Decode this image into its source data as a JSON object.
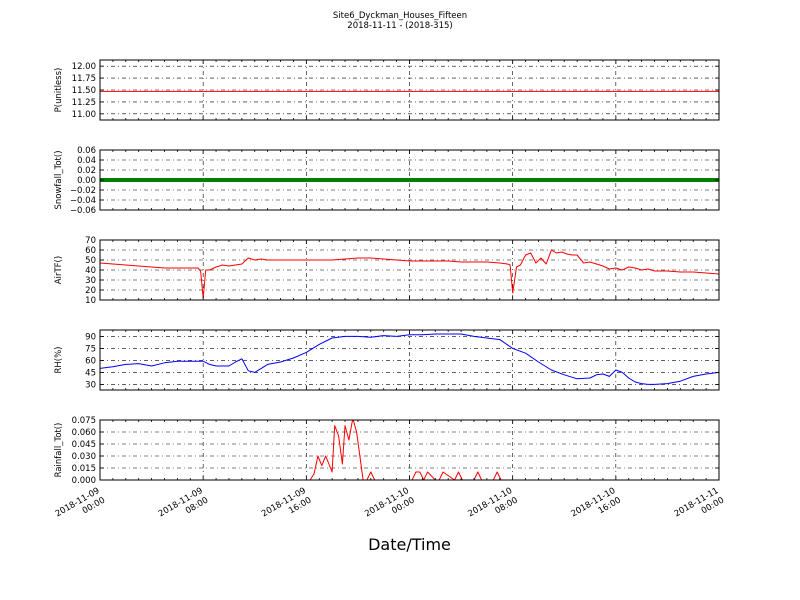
{
  "figure": {
    "title": "Site6_Dyckman_Houses_Fifteen",
    "subtitle": "2018-11-11 - (2018-315)",
    "xlabel": "Date/Time",
    "x_ticks": [
      {
        "value": 0,
        "date": "2018-11-09",
        "time": "00:00"
      },
      {
        "value": 8,
        "date": "2018-11-09",
        "time": "08:00"
      },
      {
        "value": 16,
        "date": "2018-11-09",
        "time": "16:00"
      },
      {
        "value": 24,
        "date": "2018-11-10",
        "time": "00:00"
      },
      {
        "value": 32,
        "date": "2018-11-10",
        "time": "08:00"
      },
      {
        "value": 40,
        "date": "2018-11-10",
        "time": "16:00"
      },
      {
        "value": 48,
        "date": "2018-11-11",
        "time": "00:00"
      }
    ]
  },
  "chart_data": [
    {
      "type": "line",
      "ylabel": "P(unitless)",
      "ylim": [
        10.87,
        12.13
      ],
      "yticks": [
        11.0,
        11.25,
        11.5,
        11.75,
        12.0
      ],
      "ytick_labels": [
        "11.00",
        "11.25",
        "11.50",
        "11.75",
        "12.00"
      ],
      "xlim": [
        0,
        48
      ],
      "grid": true,
      "color": "#ff0000",
      "x": [
        0,
        48
      ],
      "y": [
        11.47,
        11.47
      ]
    },
    {
      "type": "line",
      "ylabel": "Snowfall_Tot()",
      "ylim": [
        -0.06,
        0.06
      ],
      "yticks": [
        -0.06,
        -0.04,
        -0.02,
        0.0,
        0.02,
        0.04,
        0.06
      ],
      "ytick_labels": [
        "−0.06",
        "−0.04",
        "−0.02",
        "0.00",
        "0.02",
        "0.04",
        "0.06"
      ],
      "xlim": [
        0,
        48
      ],
      "grid": true,
      "color": "#007f00",
      "line_width": 4,
      "x": [
        0,
        48
      ],
      "y": [
        0,
        0
      ]
    },
    {
      "type": "line",
      "ylabel": "AirTF()",
      "ylim": [
        10,
        70
      ],
      "yticks": [
        10,
        20,
        30,
        40,
        50,
        60,
        70
      ],
      "ytick_labels": [
        "10",
        "20",
        "30",
        "40",
        "50",
        "60",
        "70"
      ],
      "xlim": [
        0,
        48
      ],
      "grid": true,
      "color": "#ff0000",
      "x": [
        0,
        1,
        2,
        3,
        4,
        5,
        6,
        7,
        7.6,
        7.8,
        8,
        8.2,
        8.5,
        9,
        9.5,
        10,
        10.5,
        11,
        11.5,
        12,
        12.5,
        13,
        14,
        15,
        16,
        17,
        18,
        19,
        20,
        21,
        22,
        23,
        24,
        25,
        26,
        27,
        28,
        29,
        30,
        31,
        31.6,
        31.8,
        32,
        32.3,
        32.6,
        33,
        33.4,
        33.8,
        34.2,
        34.6,
        35,
        35.4,
        35.8,
        36.2,
        36.6,
        37,
        37.5,
        38,
        38.5,
        39,
        39.5,
        40,
        40.5,
        41,
        41.5,
        42,
        42.5,
        43,
        44,
        45,
        46,
        47,
        48
      ],
      "y": [
        47,
        46,
        45,
        44,
        43,
        42,
        42,
        42,
        42,
        39,
        12,
        40,
        40,
        43,
        45,
        44,
        45,
        46,
        52,
        50,
        51,
        50,
        50,
        50,
        50,
        50,
        50,
        51,
        52,
        52,
        51,
        50,
        49,
        49,
        49,
        49,
        48,
        48,
        48,
        47,
        46,
        45,
        17,
        43,
        45,
        55,
        57,
        47,
        52,
        46,
        60,
        57,
        58,
        56,
        55,
        55,
        47,
        48,
        46,
        44,
        41,
        42,
        40,
        43,
        42,
        40,
        41,
        39,
        39,
        38,
        38,
        37,
        36
      ]
    },
    {
      "type": "line",
      "ylabel": "RH(%)",
      "ylim": [
        23,
        98
      ],
      "yticks": [
        30,
        45,
        60,
        75,
        90
      ],
      "ytick_labels": [
        "30",
        "45",
        "60",
        "75",
        "90"
      ],
      "xlim": [
        0,
        48
      ],
      "grid": true,
      "color": "#0000ff",
      "x": [
        0,
        1,
        2,
        3,
        4,
        5,
        6,
        7,
        8,
        8.5,
        9,
        10,
        10.5,
        11,
        11.5,
        12,
        12.5,
        13,
        14,
        15,
        16,
        17,
        18,
        19,
        20,
        21,
        22,
        23,
        24,
        25,
        26,
        27,
        28,
        29,
        30,
        31,
        32,
        32.5,
        33,
        34,
        35,
        36,
        37,
        38,
        38.5,
        39,
        39.5,
        40,
        40.5,
        41,
        41.5,
        42,
        42.5,
        43,
        44,
        45,
        46,
        47,
        48
      ],
      "y": [
        50,
        52,
        55,
        56,
        53,
        57,
        59,
        59,
        59,
        55,
        53,
        53,
        58,
        62,
        47,
        45,
        50,
        55,
        58,
        63,
        70,
        80,
        88,
        90,
        90,
        89,
        91,
        90,
        92,
        92,
        93,
        93,
        93,
        90,
        88,
        86,
        75,
        72,
        69,
        58,
        48,
        42,
        37,
        38,
        42,
        43,
        40,
        48,
        45,
        38,
        33,
        31,
        30,
        30,
        31,
        34,
        40,
        43,
        45
      ]
    },
    {
      "type": "line",
      "ylabel": "Rainfall_Tot()",
      "ylim": [
        0,
        0.075
      ],
      "yticks": [
        0.0,
        0.015,
        0.03,
        0.045,
        0.06,
        0.075
      ],
      "ytick_labels": [
        "0.000",
        "0.015",
        "0.030",
        "0.045",
        "0.060",
        "0.075"
      ],
      "xlim": [
        0,
        48
      ],
      "grid": true,
      "color": "#ff0000",
      "x": [
        0,
        16,
        16.3,
        16.6,
        16.9,
        17.2,
        17.5,
        18,
        18.2,
        18.5,
        18.8,
        19,
        19.3,
        19.6,
        19.9,
        20.4,
        20.7,
        21,
        21.3,
        21.6,
        22,
        24,
        24.2,
        24.5,
        24.8,
        25.1,
        25.4,
        26,
        26.3,
        26.6,
        27.5,
        27.8,
        28.1,
        29,
        29.3,
        29.6,
        30.5,
        30.8,
        31.1,
        48
      ],
      "y": [
        0,
        0,
        0,
        0.008,
        0.03,
        0.018,
        0.03,
        0.01,
        0.068,
        0.055,
        0.02,
        0.068,
        0.05,
        0.077,
        0.06,
        0,
        0,
        0.01,
        0,
        0,
        0,
        0,
        0,
        0.01,
        0.01,
        0,
        0.01,
        0,
        0,
        0.01,
        0,
        0.01,
        0,
        0,
        0.01,
        0,
        0,
        0.01,
        0,
        0
      ]
    }
  ]
}
